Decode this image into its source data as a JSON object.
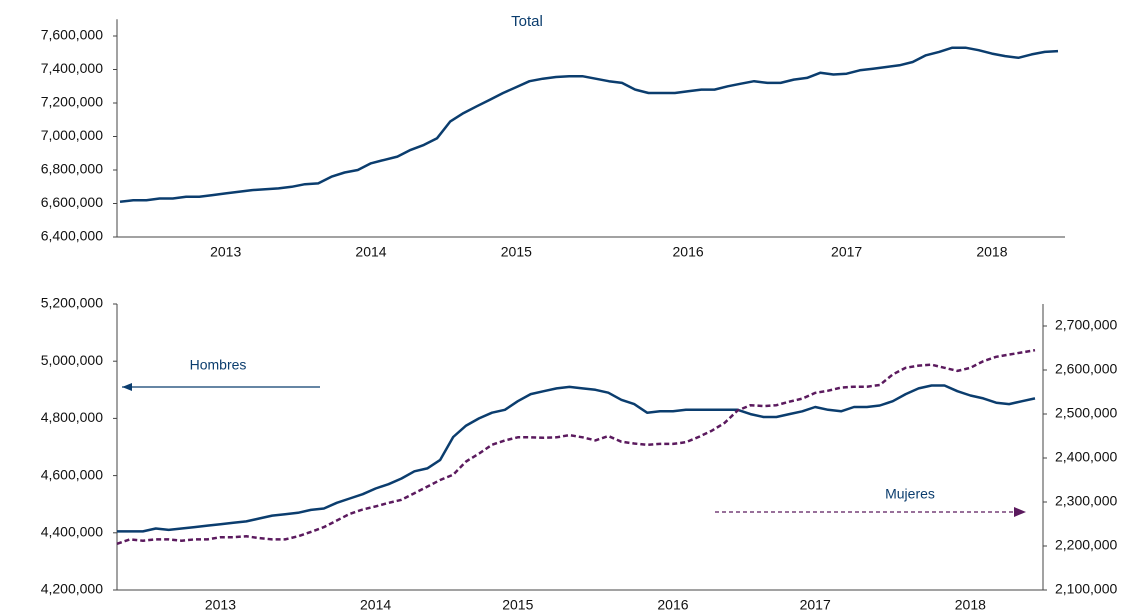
{
  "chart_data": [
    {
      "type": "line",
      "title": "Total",
      "categories": [
        null,
        null,
        null,
        null,
        null,
        null,
        null,
        null,
        "2013",
        null,
        null,
        null,
        null,
        null,
        null,
        null,
        null,
        null,
        null,
        "2014",
        null,
        null,
        null,
        null,
        null,
        null,
        null,
        null,
        null,
        null,
        "2015",
        null,
        null,
        null,
        null,
        null,
        null,
        null,
        null,
        null,
        null,
        null,
        null,
        "2016",
        null,
        null,
        null,
        null,
        null,
        null,
        null,
        null,
        null,
        null,
        null,
        "2017",
        null,
        null,
        null,
        null,
        null,
        null,
        null,
        null,
        null,
        null,
        "2018",
        null,
        null,
        null,
        null,
        null
      ],
      "values": [
        6610000,
        6620000,
        6620000,
        6630000,
        6630000,
        6640000,
        6640000,
        6650000,
        6660000,
        6670000,
        6680000,
        6685000,
        6690000,
        6700000,
        6715000,
        6720000,
        6760000,
        6785000,
        6800000,
        6840000,
        6860000,
        6880000,
        6920000,
        6950000,
        6990000,
        7090000,
        7140000,
        7180000,
        7220000,
        7260000,
        7295000,
        7330000,
        7345000,
        7355000,
        7360000,
        7360000,
        7345000,
        7330000,
        7320000,
        7280000,
        7260000,
        7260000,
        7260000,
        7270000,
        7280000,
        7280000,
        7300000,
        7315000,
        7330000,
        7320000,
        7320000,
        7340000,
        7350000,
        7380000,
        7370000,
        7375000,
        7395000,
        7405000,
        7415000,
        7425000,
        7445000,
        7485000,
        7505000,
        7530000,
        7530000,
        7515000,
        7495000,
        7480000,
        7470000,
        7490000,
        7505000,
        7510000
      ],
      "color": "#0b3d6e",
      "ylim": [
        6400000,
        7700000
      ],
      "yticks": [
        {
          "value": 6400000,
          "label": "6,400,000"
        },
        {
          "value": 6600000,
          "label": "6,600,000"
        },
        {
          "value": 6800000,
          "label": "6,800,000"
        },
        {
          "value": 7000000,
          "label": "7,000,000"
        },
        {
          "value": 7200000,
          "label": "7,200,000"
        },
        {
          "value": 7400000,
          "label": "7,400,000"
        },
        {
          "value": 7600000,
          "label": "7,600,000"
        }
      ]
    },
    {
      "type": "line",
      "categories": [
        null,
        null,
        null,
        null,
        null,
        null,
        null,
        null,
        "2013",
        null,
        null,
        null,
        null,
        null,
        null,
        null,
        null,
        null,
        null,
        null,
        "2014",
        null,
        null,
        null,
        null,
        null,
        null,
        null,
        null,
        null,
        null,
        "2015",
        null,
        null,
        null,
        null,
        null,
        null,
        null,
        null,
        null,
        null,
        null,
        "2016",
        null,
        null,
        null,
        null,
        null,
        null,
        null,
        null,
        null,
        null,
        "2017",
        null,
        null,
        null,
        null,
        null,
        null,
        null,
        null,
        null,
        null,
        null,
        "2018",
        null,
        null,
        null,
        null,
        null
      ],
      "series": [
        {
          "name": "Hombres",
          "color": "#0b3d6e",
          "values": [
            4405000,
            4405000,
            4405000,
            4415000,
            4410000,
            4415000,
            4420000,
            4425000,
            4430000,
            4435000,
            4440000,
            4450000,
            4460000,
            4465000,
            4470000,
            4480000,
            4485000,
            4505000,
            4520000,
            4535000,
            4555000,
            4570000,
            4590000,
            4615000,
            4625000,
            4655000,
            4735000,
            4775000,
            4800000,
            4820000,
            4830000,
            4860000,
            4885000,
            4895000,
            4905000,
            4910000,
            4905000,
            4900000,
            4890000,
            4865000,
            4850000,
            4820000,
            4825000,
            4825000,
            4830000,
            4830000,
            4830000,
            4830000,
            4830000,
            4815000,
            4805000,
            4805000,
            4815000,
            4825000,
            4840000,
            4830000,
            4825000,
            4840000,
            4840000,
            4845000,
            4860000,
            4885000,
            4905000,
            4915000,
            4915000,
            4895000,
            4880000,
            4870000,
            4855000,
            4850000,
            4860000,
            4870000
          ]
        },
        {
          "name": "Mujeres",
          "color": "#5b1a5e",
          "axis": "y2",
          "dashed": true,
          "values": [
            2205000,
            2215000,
            2212000,
            2215000,
            2215000,
            2212000,
            2215000,
            2215000,
            2220000,
            2220000,
            2222000,
            2218000,
            2215000,
            2215000,
            2222000,
            2232000,
            2243000,
            2258000,
            2273000,
            2283000,
            2290000,
            2298000,
            2305000,
            2320000,
            2335000,
            2350000,
            2362000,
            2392000,
            2410000,
            2430000,
            2440000,
            2447000,
            2447000,
            2446000,
            2447000,
            2452000,
            2447000,
            2440000,
            2450000,
            2437000,
            2433000,
            2430000,
            2432000,
            2432000,
            2436000,
            2448000,
            2462000,
            2480000,
            2508000,
            2520000,
            2518000,
            2520000,
            2528000,
            2535000,
            2548000,
            2553000,
            2560000,
            2562000,
            2562000,
            2566000,
            2590000,
            2605000,
            2610000,
            2612000,
            2605000,
            2598000,
            2605000,
            2620000,
            2630000,
            2635000,
            2640000,
            2645000
          ]
        }
      ],
      "ylim": [
        4200000,
        5200000
      ],
      "yticks": [
        {
          "value": 4200000,
          "label": "4,200,000"
        },
        {
          "value": 4400000,
          "label": "4,400,000"
        },
        {
          "value": 4600000,
          "label": "4,600,000"
        },
        {
          "value": 4800000,
          "label": "4,800,000"
        },
        {
          "value": 5000000,
          "label": "5,000,000"
        },
        {
          "value": 5200000,
          "label": "5,200,000"
        }
      ],
      "y2lim": [
        2100000,
        2750000
      ],
      "y2ticks": [
        {
          "value": 2100000,
          "label": "2,100,000"
        },
        {
          "value": 2200000,
          "label": "2,200,000"
        },
        {
          "value": 2300000,
          "label": "2,300,000"
        },
        {
          "value": 2400000,
          "label": "2,400,000"
        },
        {
          "value": 2500000,
          "label": "2,500,000"
        },
        {
          "value": 2600000,
          "label": "2,600,000"
        },
        {
          "value": 2700000,
          "label": "2,700,000"
        }
      ]
    }
  ]
}
